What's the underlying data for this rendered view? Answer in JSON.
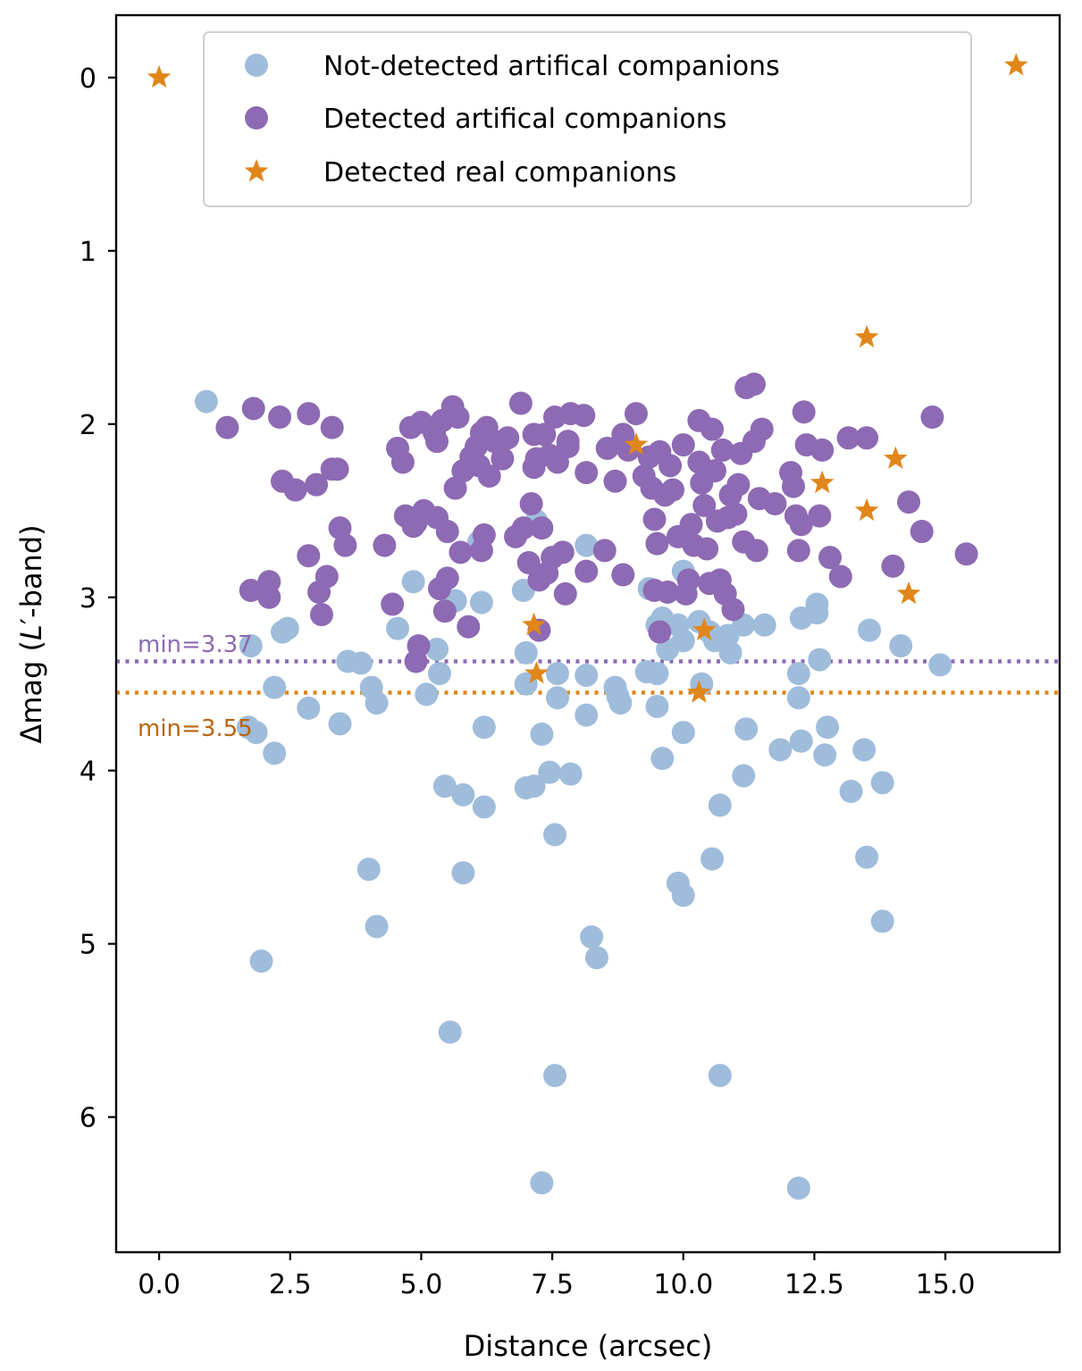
{
  "chart_data": {
    "type": "scatter",
    "xlabel": "Distance (arcsec)",
    "ylabel_prefix": "Δmag (",
    "ylabel_italic": "L",
    "ylabel_suffix": "′-band)",
    "xlim": [
      -0.82,
      17.18
    ],
    "ylim": [
      6.78,
      -0.36
    ],
    "y_inverted": true,
    "xticks": [
      0.0,
      2.5,
      5.0,
      7.5,
      10.0,
      12.5,
      15.0
    ],
    "xtick_labels": [
      "0.0",
      "2.5",
      "5.0",
      "7.5",
      "10.0",
      "12.5",
      "15.0"
    ],
    "yticks": [
      0,
      1,
      2,
      3,
      4,
      5,
      6
    ],
    "ytick_labels": [
      "0",
      "1",
      "2",
      "3",
      "4",
      "5",
      "6"
    ],
    "legend_position": "top-center",
    "colors": {
      "not_detected": "#9fbcdb",
      "detected": "#8d6ab3",
      "real": "#e0861a",
      "min_purple_line": "#8d6ab3",
      "min_orange_line": "#e0861a",
      "min_orange_text": "#b8650f"
    },
    "reference_lines": [
      {
        "name": "min-detected-artificial",
        "y": 3.37,
        "label": "min=3.37",
        "label_placement": "above"
      },
      {
        "name": "min-detected-real",
        "y": 3.55,
        "label": "min=3.55",
        "label_placement": "below"
      }
    ],
    "series": [
      {
        "name": "Not-detected artifical companions",
        "marker": "circle",
        "points": [
          [
            0.9,
            1.87
          ],
          [
            1.75,
            3.28
          ],
          [
            1.7,
            3.75
          ],
          [
            1.85,
            3.78
          ],
          [
            1.95,
            5.1
          ],
          [
            2.2,
            3.52
          ],
          [
            2.2,
            3.9
          ],
          [
            2.35,
            3.2
          ],
          [
            2.45,
            3.18
          ],
          [
            2.85,
            3.64
          ],
          [
            3.45,
            3.73
          ],
          [
            3.6,
            3.37
          ],
          [
            3.85,
            3.38
          ],
          [
            4.05,
            3.52
          ],
          [
            4.15,
            3.61
          ],
          [
            4.0,
            4.57
          ],
          [
            4.15,
            4.9
          ],
          [
            4.55,
            3.18
          ],
          [
            4.85,
            2.91
          ],
          [
            5.1,
            3.56
          ],
          [
            5.3,
            3.3
          ],
          [
            5.35,
            3.44
          ],
          [
            5.45,
            4.09
          ],
          [
            5.55,
            5.51
          ],
          [
            5.65,
            3.02
          ],
          [
            5.8,
            4.14
          ],
          [
            5.8,
            4.59
          ],
          [
            6.15,
            3.03
          ],
          [
            6.2,
            3.75
          ],
          [
            6.2,
            4.21
          ],
          [
            6.1,
            2.68
          ],
          [
            6.95,
            2.96
          ],
          [
            7.0,
            3.32
          ],
          [
            7.0,
            3.5
          ],
          [
            7.0,
            4.1
          ],
          [
            7.15,
            4.09
          ],
          [
            7.2,
            2.56
          ],
          [
            7.3,
            3.79
          ],
          [
            7.45,
            4.01
          ],
          [
            7.55,
            4.37
          ],
          [
            7.6,
            3.44
          ],
          [
            7.6,
            3.58
          ],
          [
            7.55,
            5.76
          ],
          [
            7.3,
            6.38
          ],
          [
            7.85,
            4.02
          ],
          [
            8.15,
            2.7
          ],
          [
            8.15,
            3.45
          ],
          [
            8.15,
            3.68
          ],
          [
            8.25,
            4.96
          ],
          [
            8.35,
            5.08
          ],
          [
            8.7,
            3.52
          ],
          [
            8.75,
            3.57
          ],
          [
            8.8,
            3.61
          ],
          [
            9.3,
            3.43
          ],
          [
            9.35,
            2.95
          ],
          [
            9.5,
            3.16
          ],
          [
            9.5,
            3.44
          ],
          [
            9.5,
            3.63
          ],
          [
            9.6,
            3.12
          ],
          [
            9.6,
            3.93
          ],
          [
            9.7,
            3.3
          ],
          [
            9.9,
            4.65
          ],
          [
            9.9,
            3.16
          ],
          [
            10.0,
            3.25
          ],
          [
            10.0,
            3.78
          ],
          [
            10.0,
            4.72
          ],
          [
            10.0,
            2.85
          ],
          [
            10.3,
            3.14
          ],
          [
            10.35,
            3.5
          ],
          [
            10.5,
            3.2
          ],
          [
            10.6,
            3.25
          ],
          [
            10.55,
            4.51
          ],
          [
            10.7,
            4.2
          ],
          [
            10.7,
            5.76
          ],
          [
            10.85,
            3.22
          ],
          [
            10.9,
            3.32
          ],
          [
            11.15,
            3.16
          ],
          [
            11.15,
            4.03
          ],
          [
            11.2,
            3.76
          ],
          [
            11.55,
            3.16
          ],
          [
            11.85,
            3.88
          ],
          [
            12.2,
            3.44
          ],
          [
            12.2,
            3.58
          ],
          [
            12.25,
            3.12
          ],
          [
            12.25,
            3.83
          ],
          [
            12.2,
            6.41
          ],
          [
            12.55,
            3.09
          ],
          [
            12.55,
            3.04
          ],
          [
            12.6,
            3.36
          ],
          [
            12.7,
            3.91
          ],
          [
            12.75,
            3.75
          ],
          [
            13.2,
            4.12
          ],
          [
            13.45,
            3.88
          ],
          [
            13.5,
            4.5
          ],
          [
            13.55,
            3.19
          ],
          [
            13.8,
            4.07
          ],
          [
            13.8,
            4.87
          ],
          [
            14.15,
            3.28
          ],
          [
            14.9,
            3.39
          ]
        ]
      },
      {
        "name": "Detected artifical companions",
        "marker": "circle",
        "points": [
          [
            1.3,
            2.02
          ],
          [
            1.75,
            2.96
          ],
          [
            1.8,
            1.91
          ],
          [
            2.1,
            2.91
          ],
          [
            2.1,
            3.0
          ],
          [
            2.3,
            1.96
          ],
          [
            2.35,
            2.33
          ],
          [
            2.6,
            2.38
          ],
          [
            2.85,
            1.94
          ],
          [
            2.85,
            2.76
          ],
          [
            3.0,
            2.35
          ],
          [
            3.05,
            2.97
          ],
          [
            3.1,
            3.1
          ],
          [
            3.2,
            2.88
          ],
          [
            3.3,
            2.02
          ],
          [
            3.3,
            2.26
          ],
          [
            3.4,
            2.26
          ],
          [
            3.45,
            2.6
          ],
          [
            3.55,
            2.7
          ],
          [
            4.3,
            2.7
          ],
          [
            4.45,
            3.04
          ],
          [
            4.55,
            2.14
          ],
          [
            4.65,
            2.22
          ],
          [
            4.7,
            2.53
          ],
          [
            4.8,
            2.02
          ],
          [
            4.85,
            2.59
          ],
          [
            4.9,
            2.57
          ],
          [
            4.9,
            3.37
          ],
          [
            4.95,
            3.28
          ],
          [
            5.0,
            1.99
          ],
          [
            5.05,
            2.5
          ],
          [
            5.25,
            2.05
          ],
          [
            5.3,
            2.1
          ],
          [
            5.3,
            2.54
          ],
          [
            5.35,
            2.95
          ],
          [
            5.4,
            1.98
          ],
          [
            5.45,
            3.08
          ],
          [
            5.5,
            2.62
          ],
          [
            5.5,
            2.89
          ],
          [
            5.6,
            1.9
          ],
          [
            5.65,
            2.37
          ],
          [
            5.7,
            1.96
          ],
          [
            5.75,
            2.74
          ],
          [
            5.8,
            2.27
          ],
          [
            5.9,
            3.17
          ],
          [
            5.95,
            2.19
          ],
          [
            6.05,
            2.13
          ],
          [
            6.1,
            2.24
          ],
          [
            6.15,
            2.05
          ],
          [
            6.15,
            2.73
          ],
          [
            6.2,
            2.64
          ],
          [
            6.25,
            2.02
          ],
          [
            6.3,
            2.3
          ],
          [
            6.4,
            2.1
          ],
          [
            6.55,
            2.2
          ],
          [
            6.65,
            2.08
          ],
          [
            6.8,
            2.65
          ],
          [
            6.9,
            1.88
          ],
          [
            6.95,
            2.6
          ],
          [
            7.05,
            2.8
          ],
          [
            7.1,
            2.46
          ],
          [
            7.15,
            2.06
          ],
          [
            7.15,
            2.25
          ],
          [
            7.2,
            2.2
          ],
          [
            7.25,
            2.9
          ],
          [
            7.25,
            3.19
          ],
          [
            7.3,
            2.6
          ],
          [
            7.35,
            2.06
          ],
          [
            7.4,
            2.86
          ],
          [
            7.45,
            2.18
          ],
          [
            7.5,
            2.77
          ],
          [
            7.55,
            1.96
          ],
          [
            7.6,
            2.22
          ],
          [
            7.7,
            2.74
          ],
          [
            7.75,
            2.98
          ],
          [
            7.8,
            2.1
          ],
          [
            7.8,
            2.13
          ],
          [
            7.85,
            1.94
          ],
          [
            8.1,
            1.95
          ],
          [
            8.15,
            2.28
          ],
          [
            8.15,
            2.85
          ],
          [
            8.5,
            2.73
          ],
          [
            8.55,
            2.14
          ],
          [
            8.7,
            2.33
          ],
          [
            8.85,
            2.87
          ],
          [
            8.85,
            2.06
          ],
          [
            8.95,
            2.15
          ],
          [
            9.1,
            1.94
          ],
          [
            9.25,
            2.3
          ],
          [
            9.35,
            2.19
          ],
          [
            9.4,
            2.37
          ],
          [
            9.45,
            2.55
          ],
          [
            9.45,
            2.96
          ],
          [
            9.5,
            2.69
          ],
          [
            9.55,
            2.16
          ],
          [
            9.55,
            3.2
          ],
          [
            9.65,
            2.41
          ],
          [
            9.7,
            2.97
          ],
          [
            9.75,
            2.24
          ],
          [
            9.8,
            2.38
          ],
          [
            9.9,
            2.65
          ],
          [
            10.0,
            2.12
          ],
          [
            10.05,
            2.98
          ],
          [
            10.1,
            2.9
          ],
          [
            10.15,
            2.58
          ],
          [
            10.2,
            2.7
          ],
          [
            10.3,
            1.98
          ],
          [
            10.3,
            2.22
          ],
          [
            10.35,
            2.34
          ],
          [
            10.4,
            2.47
          ],
          [
            10.45,
            2.72
          ],
          [
            10.5,
            2.92
          ],
          [
            10.55,
            2.03
          ],
          [
            10.6,
            2.27
          ],
          [
            10.65,
            2.56
          ],
          [
            10.7,
            2.9
          ],
          [
            10.75,
            2.15
          ],
          [
            10.8,
            2.98
          ],
          [
            10.85,
            2.54
          ],
          [
            10.9,
            2.41
          ],
          [
            10.95,
            3.07
          ],
          [
            11.0,
            2.52
          ],
          [
            11.05,
            2.35
          ],
          [
            11.1,
            2.17
          ],
          [
            11.15,
            2.68
          ],
          [
            11.2,
            1.79
          ],
          [
            11.35,
            1.77
          ],
          [
            11.35,
            2.1
          ],
          [
            11.4,
            2.73
          ],
          [
            11.45,
            2.43
          ],
          [
            11.5,
            2.03
          ],
          [
            11.75,
            2.46
          ],
          [
            12.05,
            2.28
          ],
          [
            12.1,
            2.36
          ],
          [
            12.15,
            2.53
          ],
          [
            12.2,
            2.73
          ],
          [
            12.25,
            2.58
          ],
          [
            12.3,
            1.93
          ],
          [
            12.35,
            2.12
          ],
          [
            12.6,
            2.53
          ],
          [
            12.65,
            2.15
          ],
          [
            12.8,
            2.77
          ],
          [
            13.0,
            2.88
          ],
          [
            13.15,
            2.08
          ],
          [
            13.5,
            2.08
          ],
          [
            14.0,
            2.82
          ],
          [
            14.3,
            2.45
          ],
          [
            14.55,
            2.62
          ],
          [
            14.75,
            1.96
          ],
          [
            15.4,
            2.75
          ]
        ]
      },
      {
        "name": "Detected real companions",
        "marker": "star",
        "points": [
          [
            0.0,
            0.0
          ],
          [
            16.35,
            -0.07
          ],
          [
            13.5,
            1.5
          ],
          [
            9.1,
            2.12
          ],
          [
            14.05,
            2.2
          ],
          [
            12.65,
            2.34
          ],
          [
            13.5,
            2.5
          ],
          [
            14.3,
            2.98
          ],
          [
            7.15,
            3.16
          ],
          [
            7.2,
            3.44
          ],
          [
            10.4,
            3.19
          ],
          [
            10.3,
            3.55
          ]
        ]
      }
    ]
  }
}
